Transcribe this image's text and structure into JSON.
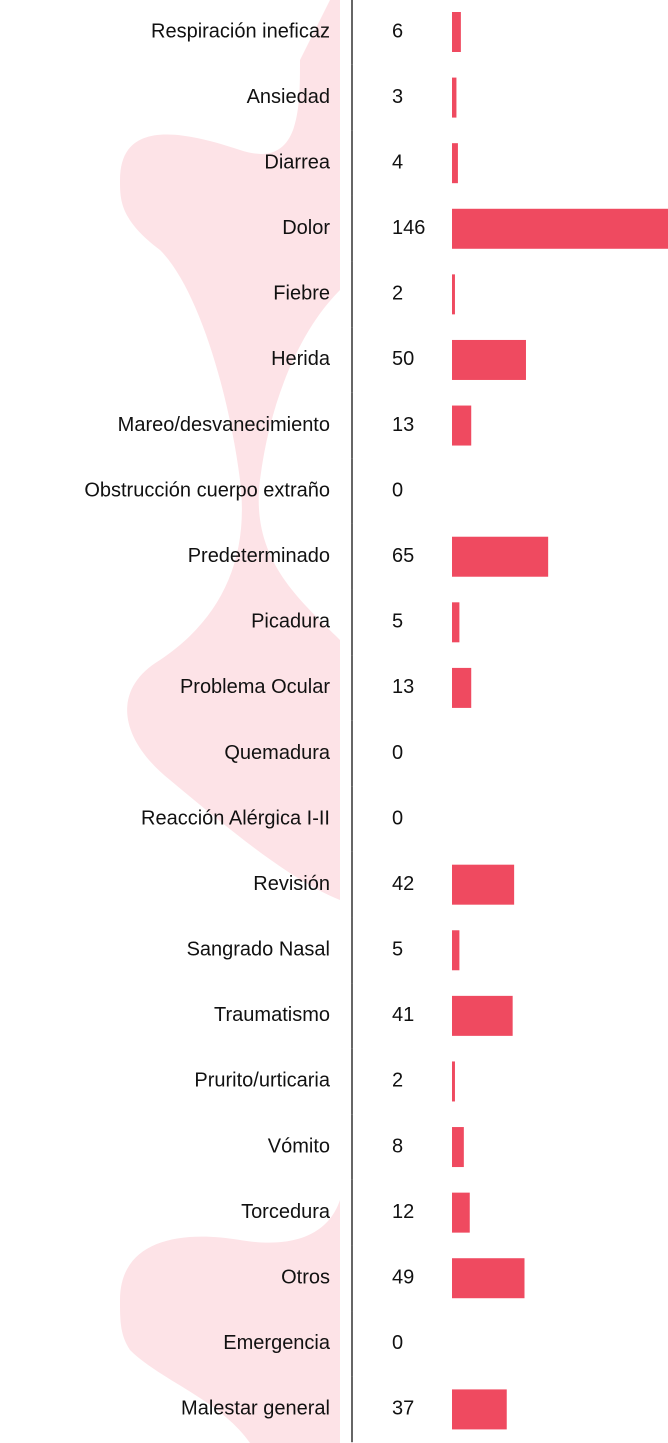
{
  "chart_data": {
    "type": "bar",
    "orientation": "horizontal",
    "color": "#ef4a60",
    "categories": [
      "Respiración ineficaz",
      "Ansiedad",
      "Diarrea",
      "Dolor",
      "Fiebre",
      "Herida",
      "Mareo/desvanecimiento",
      "Obstrucción cuerpo extraño",
      "Predeterminado",
      "Picadura",
      "Problema Ocular",
      "Quemadura",
      "Reacción Alérgica I-II",
      "Revisión",
      "Sangrado Nasal",
      "Traumatismo",
      "Prurito/urticaria",
      "Vómito",
      "Torcedura",
      "Otros",
      "Emergencia",
      "Malestar general"
    ],
    "values": [
      6,
      3,
      4,
      146,
      2,
      50,
      13,
      0,
      65,
      5,
      13,
      0,
      0,
      42,
      5,
      41,
      2,
      8,
      12,
      49,
      0,
      37
    ]
  }
}
